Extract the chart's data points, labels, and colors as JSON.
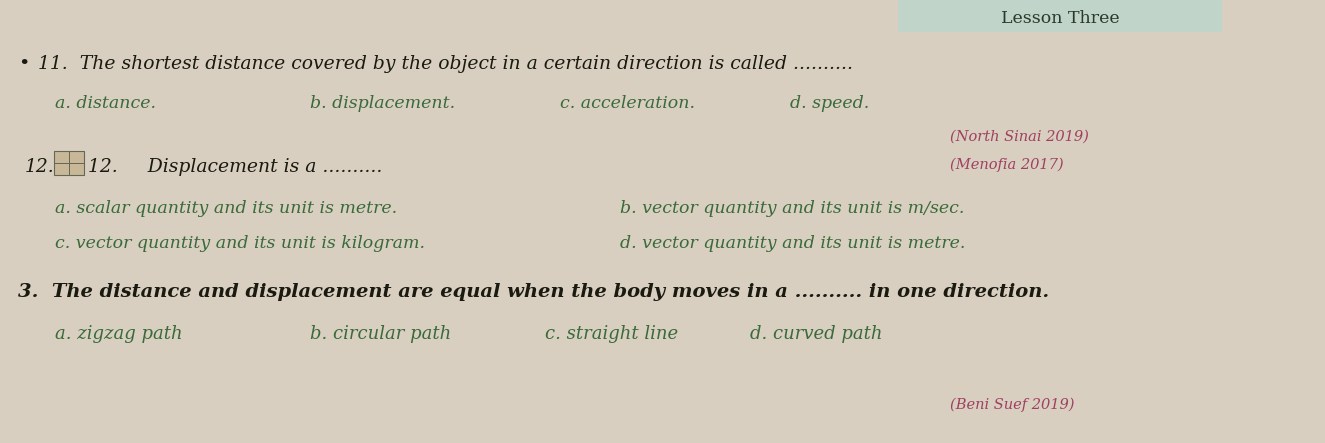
{
  "bg_color": "#d8cfc0",
  "title": "Lesson Three",
  "title_color": "#2a3a2a",
  "title_fontsize": 12.5,
  "text_color_dark": "#1a1a10",
  "text_color_green": "#3a6a3a",
  "text_color_pink": "#a04060",
  "q11_main": "11.  The shortest distance covered by the object in a certain direction is called ..........",
  "q11_a": "a. distance.",
  "q11_b": "b. displacement.",
  "q11_c": "c. acceleration.",
  "q11_d": "d. speed.",
  "q11_source": "(North Sinai 2019)",
  "q12_main": "12.     Displacement is a ..........",
  "q12_source": "(Menofia 2017)",
  "q12_a": "a. scalar quantity and its unit is metre.",
  "q12_b": "b. vector quantity and its unit is m/sec.",
  "q12_c": "c. vector quantity and its unit is kilogram.",
  "q12_d": "d. vector quantity and its unit is metre.",
  "q3_main": "3.  The distance and displacement are equal when the body moves in a .......... in one direction.",
  "q3_a": "a. zigzag path",
  "q3_b": "b. circular path",
  "q3_c": "c. straight line",
  "q3_d": "d. curved path",
  "q3_source": "(Beni Suef 2019)"
}
